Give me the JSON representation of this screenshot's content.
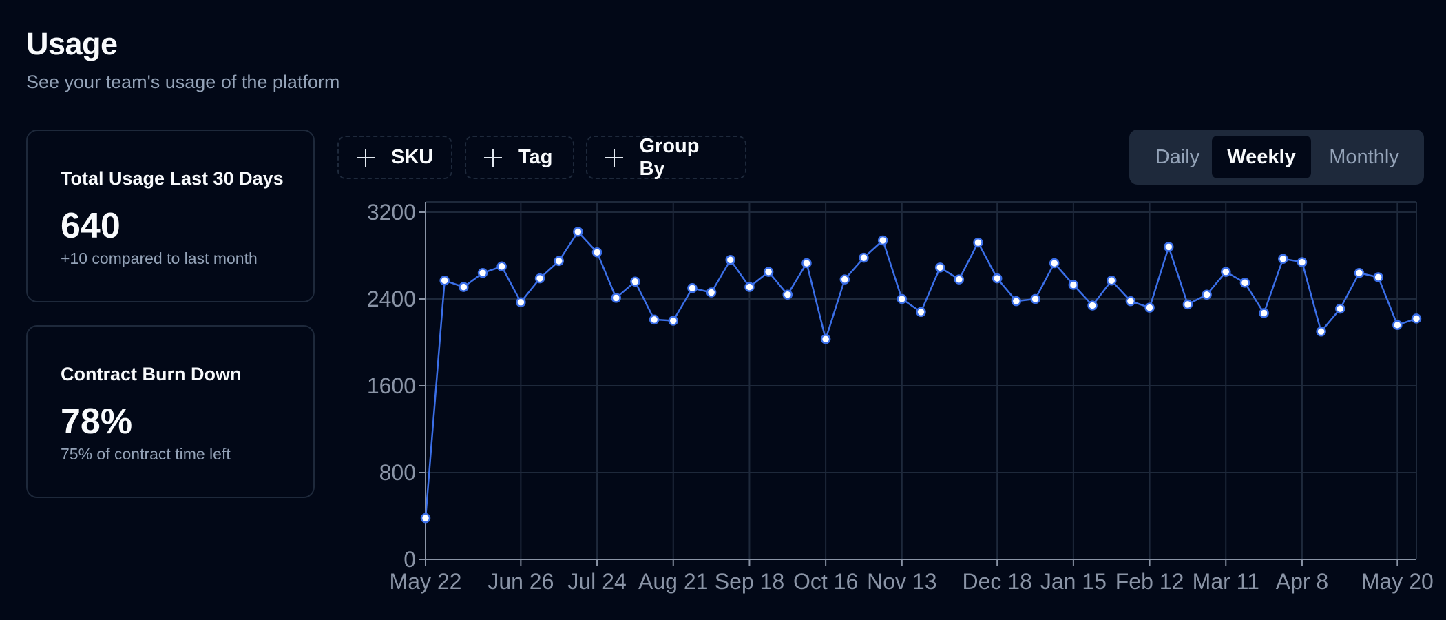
{
  "header": {
    "title": "Usage",
    "subtitle": "See your team's usage of the platform"
  },
  "cards": {
    "usage": {
      "title": "Total Usage Last 30 Days",
      "value": "640",
      "delta": "+10 compared to last month"
    },
    "burn": {
      "title": "Contract Burn Down",
      "value": "78%",
      "delta": "75% of contract time left"
    }
  },
  "filters": {
    "sku_label": "SKU",
    "tag_label": "Tag",
    "group_label": "Group By"
  },
  "period": {
    "options": [
      "Daily",
      "Weekly",
      "Monthly"
    ],
    "selected": "Weekly"
  },
  "colors": {
    "background": "#020817",
    "line": "#3b6fe8",
    "grid": "#1e293b"
  },
  "chart_data": {
    "type": "line",
    "xlabel": "",
    "ylabel": "",
    "ylim": [
      0,
      3200
    ],
    "y_ticks": [
      0,
      800,
      1600,
      2400,
      3200
    ],
    "x_tick_labels": [
      "May 22",
      "Jun 26",
      "Jul 24",
      "Aug 21",
      "Sep 18",
      "Oct 16",
      "Nov 13",
      "Dec 18",
      "Jan 15",
      "Feb 12",
      "Mar 11",
      "Apr 8",
      "May 20"
    ],
    "grid": true,
    "values": [
      380,
      2570,
      2510,
      2640,
      2700,
      2370,
      2590,
      2750,
      3020,
      2830,
      2410,
      2560,
      2210,
      2200,
      2500,
      2460,
      2760,
      2510,
      2650,
      2440,
      2730,
      2030,
      2580,
      2780,
      2940,
      2400,
      2280,
      2690,
      2580,
      2920,
      2590,
      2380,
      2400,
      2730,
      2530,
      2340,
      2570,
      2380,
      2320,
      2880,
      2350,
      2440,
      2650,
      2550,
      2270,
      2770,
      2740,
      2100,
      2310,
      2640,
      2600,
      2160,
      2220
    ]
  }
}
